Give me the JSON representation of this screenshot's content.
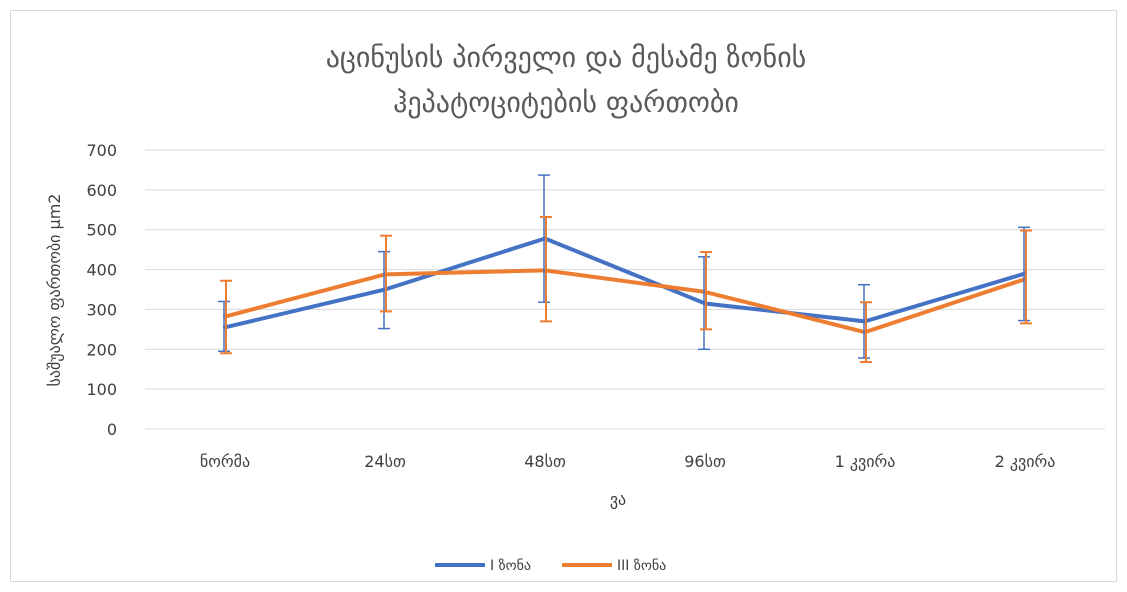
{
  "chart_data": {
    "type": "line",
    "title_lines": [
      "აცინუსის პირველი და მესამე ზონის",
      "ჰეპატოციტების ფართობი"
    ],
    "xlabel": "ვა",
    "ylabel": "საშუალო ფართობი µm2",
    "categories": [
      "ნორმა",
      "24სთ",
      "48სთ",
      "96სთ",
      "1 კვირა",
      "2 კვირა"
    ],
    "ylim": [
      0,
      700
    ],
    "yticks": [
      "0",
      "100",
      "200",
      "300",
      "400",
      "500",
      "600",
      "700"
    ],
    "grid": true,
    "legend_position": "bottom",
    "series": [
      {
        "name": "I ზონა",
        "color": "#4472C4",
        "values": [
          255,
          350,
          478,
          315,
          270,
          390
        ],
        "err_low": [
          195,
          252,
          318,
          200,
          178,
          272
        ],
        "err_high": [
          320,
          445,
          637,
          432,
          362,
          506
        ]
      },
      {
        "name": "III ზონა",
        "color": "#ED7D31",
        "values": [
          282,
          388,
          398,
          344,
          243,
          376
        ],
        "err_low": [
          190,
          295,
          270,
          250,
          168,
          265
        ],
        "err_high": [
          372,
          485,
          532,
          444,
          318,
          498
        ]
      }
    ]
  }
}
